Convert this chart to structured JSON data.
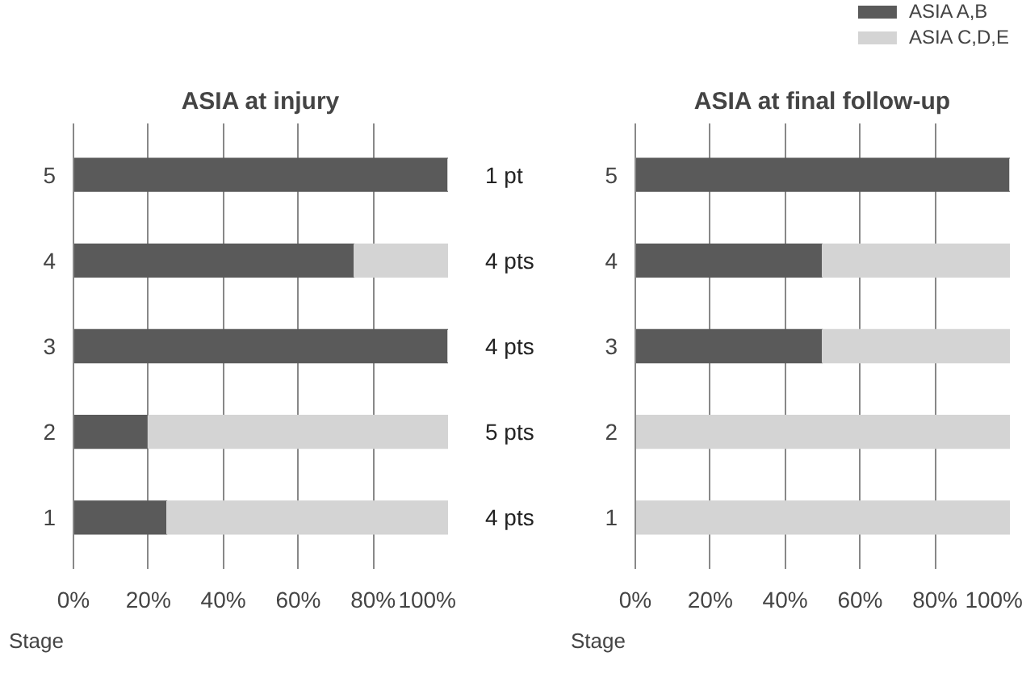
{
  "chart_data": [
    {
      "type": "bar",
      "orientation": "horizontal",
      "stacked": true,
      "title": "ASIA at injury",
      "ylabel": "Stage",
      "categories": [
        "5",
        "4",
        "3",
        "2",
        "1"
      ],
      "series": [
        {
          "color": "#5a5a5a",
          "values": [
            100,
            75,
            100,
            20,
            25
          ]
        },
        {
          "color": "#d4d4d4",
          "values": [
            0,
            25,
            0,
            80,
            75
          ]
        }
      ],
      "xlim": [
        0,
        100
      ],
      "xticks": [
        {
          "value": 0,
          "label": "0%"
        },
        {
          "value": 20,
          "label": "20%"
        },
        {
          "value": 40,
          "label": "40%"
        },
        {
          "value": 60,
          "label": "60%"
        },
        {
          "value": 80,
          "label": "80%"
        },
        {
          "value": 100,
          "label": "100%"
        }
      ],
      "grid": "x",
      "legend": false,
      "annotations": [
        "1 pt",
        "4 pts",
        "4 pts",
        "5 pts",
        "4 pts"
      ]
    },
    {
      "type": "bar",
      "orientation": "horizontal",
      "stacked": true,
      "title": "ASIA at final follow-up",
      "ylabel": "Stage",
      "categories": [
        "5",
        "4",
        "3",
        "2",
        "1"
      ],
      "series": [
        {
          "name": "ASIA A,B",
          "color": "#5a5a5a",
          "values": [
            100,
            50,
            50,
            0,
            0
          ]
        },
        {
          "name": "ASIA C,D,E",
          "color": "#d4d4d4",
          "values": [
            0,
            50,
            50,
            100,
            100
          ]
        }
      ],
      "xlim": [
        0,
        100
      ],
      "xticks": [
        {
          "value": 0,
          "label": "0%"
        },
        {
          "value": 20,
          "label": "20%"
        },
        {
          "value": 40,
          "label": "40%"
        },
        {
          "value": 60,
          "label": "60%"
        },
        {
          "value": 80,
          "label": "80%"
        },
        {
          "value": 100,
          "label": "100%"
        }
      ],
      "grid": "x",
      "legend": "top right"
    }
  ]
}
